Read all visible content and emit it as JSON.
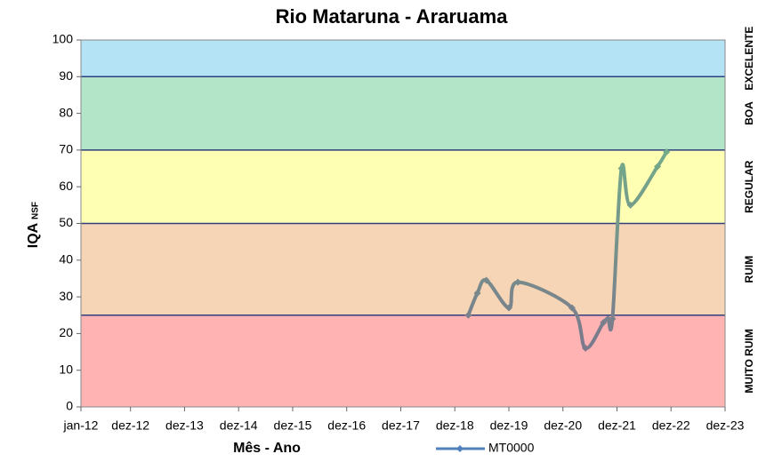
{
  "chart_data": {
    "type": "line",
    "title": "Rio Mataruna - Araruama",
    "x_label": "Mês - Ano",
    "y_label": "IQA",
    "y_label_sub": "NSF",
    "xlim": [
      "2012-01",
      "2023-12"
    ],
    "xticks": [
      {
        "value": "2012-01",
        "label": "jan-12"
      },
      {
        "value": "2012-12",
        "label": "dez-12"
      },
      {
        "value": "2013-12",
        "label": "dez-13"
      },
      {
        "value": "2014-12",
        "label": "dez-14"
      },
      {
        "value": "2015-12",
        "label": "dez-15"
      },
      {
        "value": "2016-12",
        "label": "dez-16"
      },
      {
        "value": "2017-12",
        "label": "dez-17"
      },
      {
        "value": "2018-12",
        "label": "dez-18"
      },
      {
        "value": "2019-12",
        "label": "dez-19"
      },
      {
        "value": "2020-12",
        "label": "dez-20"
      },
      {
        "value": "2021-12",
        "label": "dez-21"
      },
      {
        "value": "2022-12",
        "label": "dez-22"
      },
      {
        "value": "2023-12",
        "label": "dez-23"
      }
    ],
    "ylim": [
      0,
      100
    ],
    "yticks": [
      0,
      10,
      20,
      30,
      40,
      50,
      60,
      70,
      80,
      90,
      100
    ],
    "bands": [
      {
        "name": "MUITO RUIM",
        "from": 0,
        "to": 25,
        "color": "#ffb3b3"
      },
      {
        "name": "RUIM",
        "from": 25,
        "to": 50,
        "color": "#f5d5b5"
      },
      {
        "name": "REGULAR",
        "from": 50,
        "to": 70,
        "color": "#ffffb3"
      },
      {
        "name": "BOA",
        "from": 70,
        "to": 90,
        "color": "#b3e6c8"
      },
      {
        "name": "EXCELENTE",
        "from": 90,
        "to": 100,
        "color": "#b3e3f5"
      }
    ],
    "band_line_color": "#2f3f7f",
    "series": [
      {
        "name": "MT0000",
        "color": "#4f81bd",
        "line_colors": [
          "#7d6a8c",
          "#72b38a"
        ],
        "x": [
          "2019-03",
          "2019-05",
          "2019-07",
          "2019-12",
          "2020-02",
          "2021-02",
          "2021-05",
          "2021-09",
          "2021-10",
          "2021-11",
          "2022-01",
          "2022-03",
          "2022-09",
          "2022-11"
        ],
        "values": [
          25,
          31,
          34.5,
          27,
          34,
          27,
          16,
          23,
          24,
          24,
          65,
          55,
          65.5,
          69.5
        ]
      }
    ],
    "legend": "bottom"
  }
}
